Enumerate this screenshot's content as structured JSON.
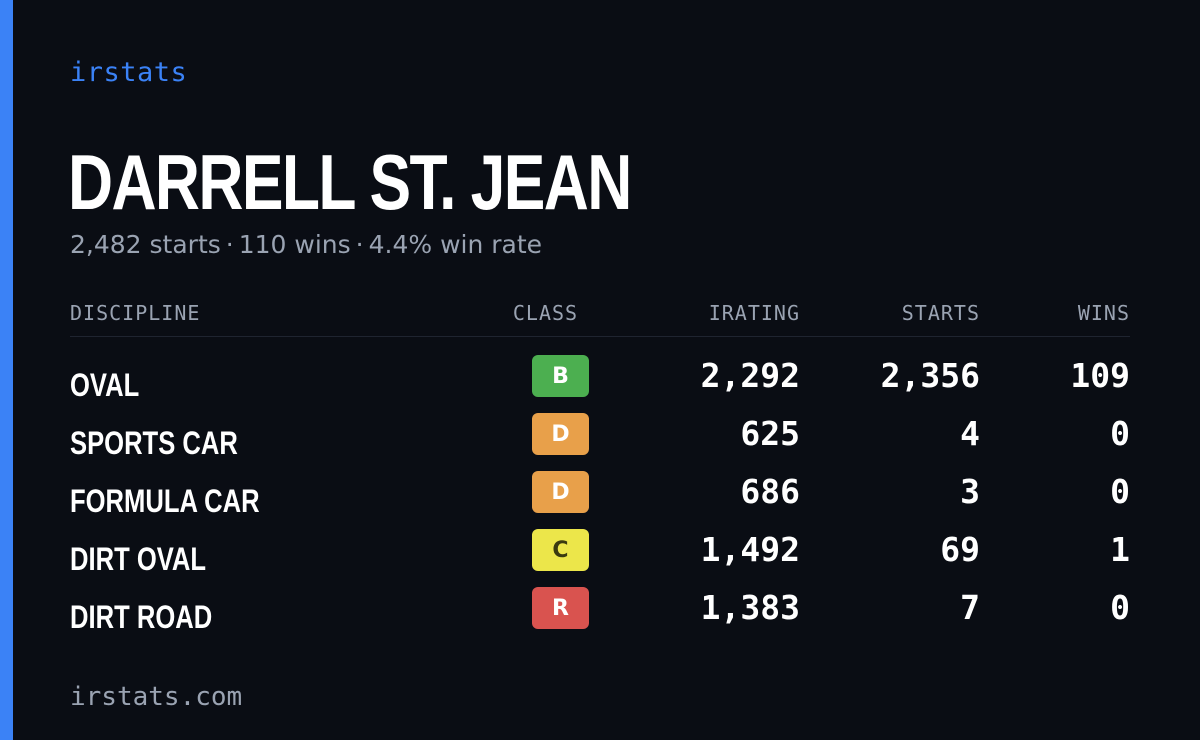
{
  "brand": "irstats",
  "driver": {
    "name": "DARRELL ST. JEAN",
    "summary": {
      "starts": "2,482 starts",
      "wins": "110 wins",
      "win_rate": "4.4% win rate",
      "separator": "·"
    }
  },
  "table": {
    "headers": {
      "discipline": "DISCIPLINE",
      "class": "CLASS",
      "irating": "IRATING",
      "starts": "STARTS",
      "wins": "WINS"
    },
    "rows": [
      {
        "discipline": "OVAL",
        "class": "B",
        "class_color": "#4caf50",
        "class_text_color": "#ffffff",
        "irating": "2,292",
        "starts": "2,356",
        "wins": "109"
      },
      {
        "discipline": "SPORTS CAR",
        "class": "D",
        "class_color": "#e8a04a",
        "class_text_color": "#ffffff",
        "irating": "625",
        "starts": "4",
        "wins": "0"
      },
      {
        "discipline": "FORMULA CAR",
        "class": "D",
        "class_color": "#e8a04a",
        "class_text_color": "#ffffff",
        "irating": "686",
        "starts": "3",
        "wins": "0"
      },
      {
        "discipline": "DIRT OVAL",
        "class": "C",
        "class_color": "#ece64a",
        "class_text_color": "#3a3a10",
        "irating": "1,492",
        "starts": "69",
        "wins": "1"
      },
      {
        "discipline": "DIRT ROAD",
        "class": "R",
        "class_color": "#d9534f",
        "class_text_color": "#ffffff",
        "irating": "1,383",
        "starts": "7",
        "wins": "0"
      }
    ]
  },
  "footer": "irstats.com",
  "colors": {
    "background": "#0a0d14",
    "accent": "#3b82f6",
    "muted_text": "#9aa3b2"
  }
}
